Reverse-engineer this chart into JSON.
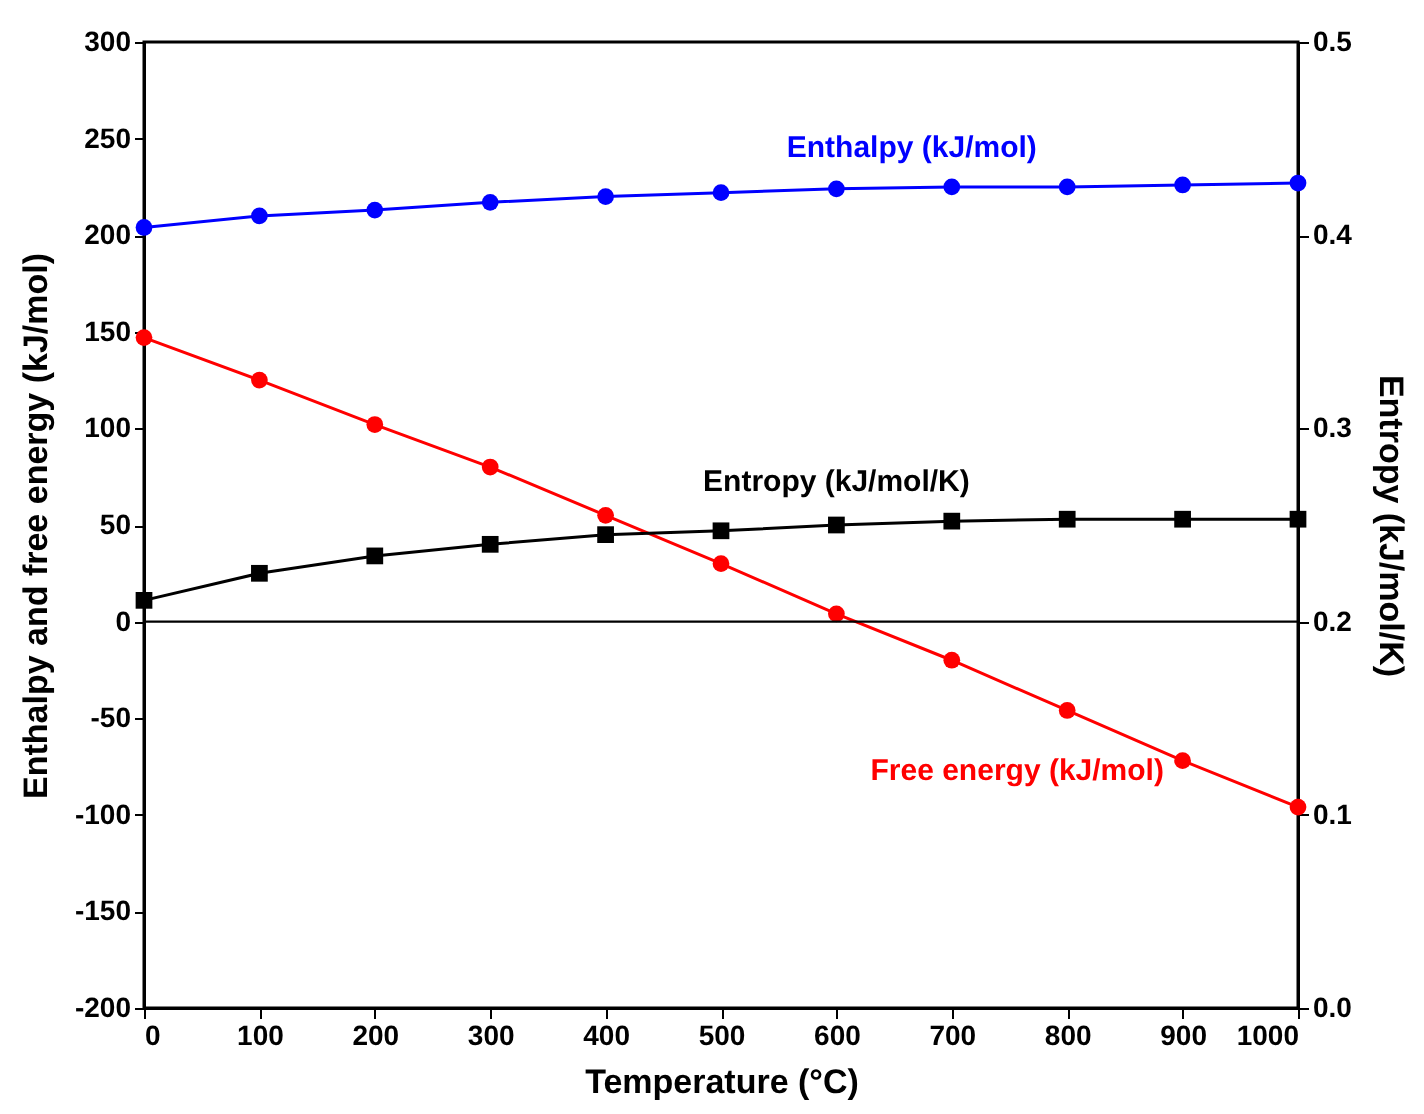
{
  "chart_data": {
    "type": "line",
    "xlabel": "Temperature (°C)",
    "ylabel": "Enthalpy and free energy (kJ/mol)",
    "y2label": "Entropy (kJ/mol/K)",
    "x": [
      0,
      100,
      200,
      300,
      400,
      500,
      600,
      700,
      800,
      900,
      1000
    ],
    "series": [
      {
        "name": "Enthalpy (kJ/mol)",
        "color": "#0000ff",
        "marker": "circle",
        "values": [
          204,
          210,
          213,
          217,
          220,
          222,
          224,
          225,
          225,
          226,
          227
        ]
      },
      {
        "name": "Free energy (kJ/mol)",
        "color": "#ff0000",
        "marker": "circle",
        "values": [
          147,
          125,
          102,
          80,
          55,
          30,
          4,
          -20,
          -46,
          -72,
          -96
        ]
      },
      {
        "name": "Entropy (kJ/mol/K)",
        "color": "#000000",
        "marker": "square",
        "axis": "y2",
        "values": [
          0.211,
          0.225,
          0.234,
          0.24,
          0.245,
          0.247,
          0.25,
          0.252,
          0.253,
          0.253,
          0.253
        ]
      }
    ],
    "xlim": [
      0,
      1000
    ],
    "xticks": [
      0,
      100,
      200,
      300,
      400,
      500,
      600,
      700,
      800,
      900,
      1000
    ],
    "ylim": [
      -200,
      300
    ],
    "yticks": [
      -200,
      -150,
      -100,
      -50,
      0,
      50,
      100,
      150,
      200,
      250,
      300
    ],
    "y2lim": [
      0,
      0.5
    ],
    "y2ticks": [
      {
        "value": 0,
        "label": "0.0"
      },
      0.1,
      0.2,
      0.3,
      0.4,
      0.5
    ],
    "ref_lines": [
      {
        "axis": "y",
        "value": 0,
        "color": "#000000"
      }
    ],
    "grid": false
  }
}
